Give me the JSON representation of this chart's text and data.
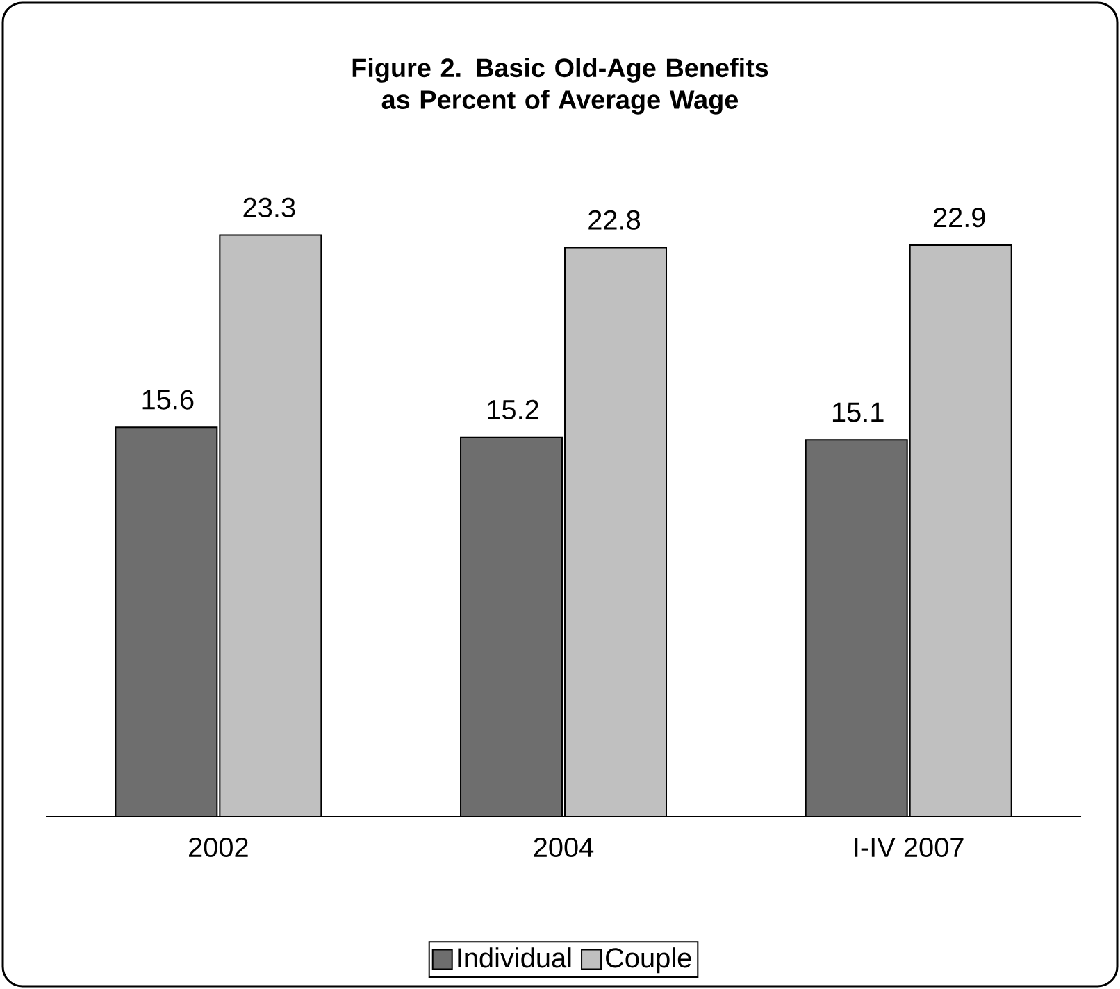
{
  "chart_data": {
    "type": "bar",
    "title": "Figure 2. Basic Old-Age Benefits as Percent of Average Wage",
    "categories": [
      "2002",
      "2004",
      "I-IV 2007"
    ],
    "series": [
      {
        "name": "Individual",
        "color": "#6e6e6e",
        "values": [
          15.6,
          15.2,
          15.1
        ]
      },
      {
        "name": "Couple",
        "color": "#c0c0c0",
        "values": [
          23.3,
          22.8,
          22.9
        ]
      }
    ],
    "data_labels": true,
    "legend": "bottom"
  }
}
